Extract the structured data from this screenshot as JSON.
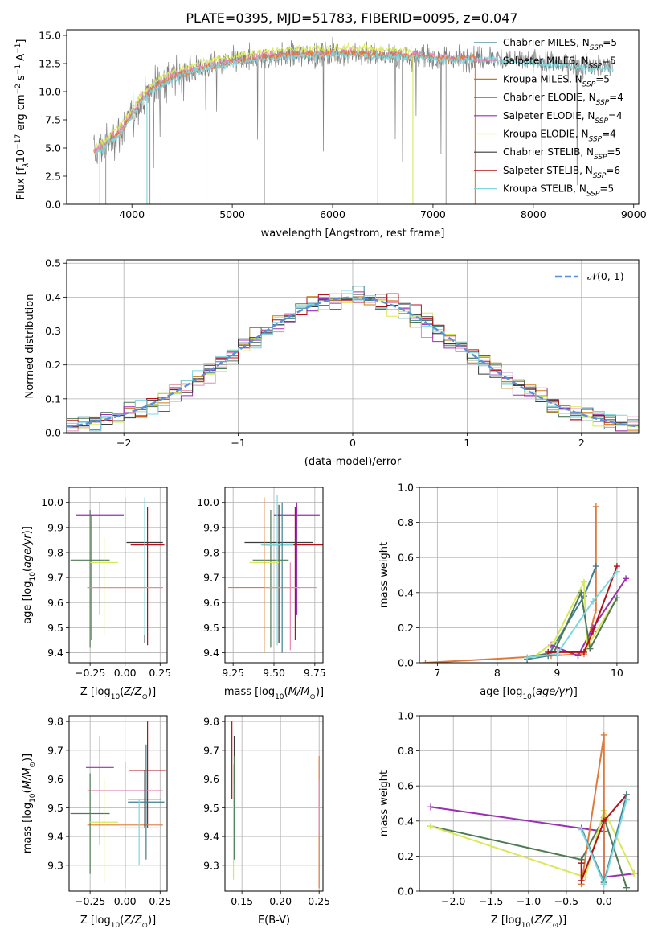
{
  "figure": {
    "title": "PLATE=0395, MJD=51783, FIBERID=0095, z=0.047"
  },
  "colors": {
    "Chabrier MILES": "#3f7f8f",
    "Salpeter MILES": "#e889b3",
    "Kroupa MILES": "#c97a14",
    "Chabrier ELODIE": "#4f7a56",
    "Salpeter ELODIE": "#9a2fb3",
    "Kroupa ELODIE": "#d9e85a",
    "Chabrier STELIB": "#3a3a3a",
    "Salpeter STELIB": "#b3121b",
    "Kroupa STELIB": "#7fd6dc",
    "data": "#808080",
    "orange_model": "#e07a3a",
    "normal": "#5b8ed6",
    "grid": "#b0b0b0"
  },
  "chart_data": [
    {
      "panel": "spectrum",
      "type": "line",
      "title": "PLATE=0395, MJD=51783, FIBERID=0095, z=0.047",
      "xlabel": "wavelength [Angstrom, rest frame]",
      "ylabel": "Flux [fλ10⁻¹⁷ erg cm⁻² s⁻¹ A⁻¹]",
      "xlim": [
        3350,
        9050
      ],
      "ylim": [
        0,
        15.5
      ],
      "xticks": [
        4000,
        5000,
        6000,
        7000,
        8000,
        9000
      ],
      "yticks": [
        0.0,
        2.5,
        5.0,
        7.5,
        10.0,
        12.5,
        15.0
      ],
      "grid": false,
      "legend_position": "right",
      "legend": [
        "Chabrier MILES, N_SSP=5",
        "Salpeter MILES, N_SSP=5",
        "Kroupa MILES, N_SSP=5",
        "Chabrier ELODIE, N_SSP=4",
        "Salpeter ELODIE, N_SSP=4",
        "Kroupa ELODIE, N_SSP=4",
        "Chabrier STELIB, N_SSP=5",
        "Salpeter STELIB, N_SSP=6",
        "Kroupa STELIB, N_SSP=5"
      ],
      "continuum": {
        "x": [
          3600,
          3700,
          3800,
          3900,
          4000,
          4100,
          4200,
          4300,
          4400,
          4500,
          4600,
          4800,
          5000,
          5200,
          5400,
          5600,
          5800,
          6000,
          6200,
          6400,
          6600,
          6800,
          7000,
          7200,
          7400,
          7600,
          7800,
          8000,
          8200,
          8400,
          8600,
          8800
        ],
        "y": [
          4.5,
          5.0,
          5.8,
          6.6,
          8.0,
          9.3,
          10.2,
          10.8,
          11.2,
          11.6,
          11.9,
          12.3,
          12.6,
          12.9,
          13.1,
          13.3,
          13.3,
          13.4,
          13.4,
          13.3,
          13.2,
          13.2,
          13.0,
          12.9,
          13.0,
          13.0,
          12.8,
          12.7,
          12.5,
          12.4,
          12.2,
          12.2
        ]
      },
      "models_extent": {
        "Kroupa MILES": [
          3600,
          7420
        ],
        "Salpeter MILES": [
          3600,
          7420
        ],
        "Chabrier MILES": [
          3600,
          7420
        ],
        "Kroupa STELIB": [
          3620,
          8800
        ]
      },
      "dips": [
        {
          "x": 4150,
          "to": 0.0
        },
        {
          "x": 6800,
          "to": 0.0
        },
        {
          "x": 7420,
          "to": 0.0
        }
      ]
    },
    {
      "panel": "residual_histogram",
      "type": "line",
      "xlabel": "(data-model)/error",
      "ylabel": "Normed distribution",
      "xlim": [
        -2.5,
        2.5
      ],
      "ylim": [
        0,
        0.51
      ],
      "xticks": [
        -2,
        -1,
        0,
        1,
        2
      ],
      "yticks": [
        0.0,
        0.1,
        0.2,
        0.3,
        0.4,
        0.5
      ],
      "grid": true,
      "legend_position": "top-right",
      "legend": [
        "𝒩(0, 1)"
      ],
      "bin_width": 0.1,
      "bin_start": -2.5
    },
    {
      "panel": "age_vs_Z",
      "type": "scatter",
      "xlabel": "Z [log10(Z/Z⊙)]",
      "ylabel": "age [log10(age/yr)]",
      "xlim": [
        -0.4,
        0.3
      ],
      "ylim": [
        9.36,
        10.06
      ],
      "xticks": [
        -0.25,
        0.0,
        0.25
      ],
      "yticks": [
        9.4,
        9.5,
        9.6,
        9.7,
        9.8,
        9.9,
        10.0
      ],
      "grid": true,
      "points": [
        {
          "model": "Chabrier ELODIE",
          "x": -0.25,
          "y": 9.77,
          "xerr": 0.14,
          "yerr": [
            0.35,
            0.2
          ]
        },
        {
          "model": "Chabrier MILES",
          "x": -0.24,
          "y": 9.75,
          "xerr": 0.0,
          "yerr": [
            0.3,
            0.2
          ]
        },
        {
          "model": "Salpeter ELODIE",
          "x": -0.18,
          "y": 9.95,
          "xerr": 0.17,
          "yerr": [
            0.4,
            0.05
          ]
        },
        {
          "model": "Kroupa ELODIE",
          "x": -0.15,
          "y": 9.76,
          "xerr": 0.1,
          "yerr": [
            0.29,
            0.1
          ]
        },
        {
          "model": "Chabrier STELIB",
          "x": 0.14,
          "y": 9.84,
          "xerr": 0.13,
          "yerr": [
            0.4,
            0.15
          ]
        },
        {
          "model": "Salpeter STELIB",
          "x": 0.16,
          "y": 9.83,
          "xerr": 0.12,
          "yerr": [
            0.4,
            0.15
          ]
        },
        {
          "model": "Kroupa STELIB",
          "x": 0.14,
          "y": 9.77,
          "xerr": 0.0,
          "yerr": [
            0.3,
            0.25
          ]
        },
        {
          "model": "Kroupa MILES",
          "x": 0.0,
          "y": 9.66,
          "xerr": 0.27,
          "yerr": [
            0.26,
            0.36
          ]
        },
        {
          "model": "Salpeter MILES",
          "x": 0.0,
          "y": 9.66,
          "xerr": 0.27,
          "yerr": [
            0.0,
            0.0
          ]
        }
      ]
    },
    {
      "panel": "age_vs_mass",
      "type": "scatter",
      "xlabel": "mass [log10(M/M⊙)]",
      "ylabel": "",
      "xlim": [
        9.2,
        9.8
      ],
      "ylim": [
        9.36,
        10.06
      ],
      "xticks": [
        9.25,
        9.5,
        9.75
      ],
      "yticks": [
        9.4,
        9.5,
        9.6,
        9.7,
        9.8,
        9.9,
        10.0
      ],
      "grid": true,
      "points": [
        {
          "model": "Salpeter ELODIE",
          "x": 9.64,
          "y": 9.95,
          "xerr": 0.14,
          "yerr": [
            0.4,
            0.05
          ]
        },
        {
          "model": "Chabrier STELIB",
          "x": 9.53,
          "y": 9.84,
          "xerr": 0.21,
          "yerr": [
            0.4,
            0.15
          ]
        },
        {
          "model": "Salpeter STELIB",
          "x": 9.63,
          "y": 9.83,
          "xerr": 0.2,
          "yerr": [
            0.38,
            0.15
          ]
        },
        {
          "model": "Chabrier ELODIE",
          "x": 9.48,
          "y": 9.77,
          "xerr": 0.11,
          "yerr": [
            0.35,
            0.2
          ]
        },
        {
          "model": "Kroupa STELIB",
          "x": 9.52,
          "y": 9.83,
          "xerr": 0.1,
          "yerr": [
            0.4,
            0.2
          ]
        },
        {
          "model": "Kroupa ELODIE",
          "x": 9.44,
          "y": 9.76,
          "xerr": 0.09,
          "yerr": [
            0.29,
            0.1
          ]
        },
        {
          "model": "Kroupa MILES",
          "x": 9.44,
          "y": 9.66,
          "xerr": 0.22,
          "yerr": [
            0.26,
            0.36
          ]
        },
        {
          "model": "Salpeter MILES",
          "x": 9.6,
          "y": 9.66,
          "xerr": 0.16,
          "yerr": [
            0.25,
            0.1
          ]
        },
        {
          "model": "Chabrier MILES",
          "x": 9.55,
          "y": 9.7,
          "xerr": 0.0,
          "yerr": [
            0.3,
            0.3
          ]
        }
      ]
    },
    {
      "panel": "mass_weight_vs_age",
      "type": "line",
      "xlabel": "age [log10(age/yr)]",
      "ylabel": "mass weight",
      "xlim": [
        6.7,
        10.35
      ],
      "ylim": [
        0,
        1.0
      ],
      "xticks": [
        7,
        8,
        9,
        10
      ],
      "yticks": [
        0.0,
        0.2,
        0.4,
        0.6,
        0.8,
        1.0
      ],
      "grid": true,
      "series": [
        {
          "model": "Kroupa MILES",
          "x": [
            6.8,
            8.9,
            9.45,
            9.65,
            9.65
          ],
          "y": [
            0.0,
            0.04,
            0.05,
            0.3,
            0.89
          ]
        },
        {
          "model": "Chabrier MILES",
          "x": [
            8.5,
            8.85,
            9.45,
            9.65
          ],
          "y": [
            0.02,
            0.04,
            0.38,
            0.55
          ]
        },
        {
          "model": "Salpeter ELODIE",
          "x": [
            8.9,
            9.35,
            9.6,
            10.15
          ],
          "y": [
            0.1,
            0.04,
            0.2,
            0.48
          ]
        },
        {
          "model": "Kroupa ELODIE",
          "x": [
            8.6,
            8.95,
            9.45,
            9.5,
            10.0
          ],
          "y": [
            0.03,
            0.12,
            0.46,
            0.09,
            0.37
          ]
        },
        {
          "model": "Chabrier ELODIE",
          "x": [
            8.5,
            8.95,
            9.4,
            9.55,
            10.0
          ],
          "y": [
            0.03,
            0.06,
            0.4,
            0.08,
            0.37
          ]
        },
        {
          "model": "Salpeter STELIB",
          "x": [
            8.85,
            9.45,
            9.6,
            10.0
          ],
          "y": [
            0.06,
            0.06,
            0.18,
            0.55
          ]
        },
        {
          "model": "Kroupa STELIB",
          "x": [
            8.5,
            9.0,
            9.6,
            10.0
          ],
          "y": [
            0.03,
            0.05,
            0.35,
            0.52
          ]
        }
      ]
    },
    {
      "panel": "mass_vs_Z",
      "type": "scatter",
      "xlabel": "Z [log10(Z/Z⊙)]",
      "ylabel": "mass [log10(M/M⊙)]",
      "xlim": [
        -0.4,
        0.3
      ],
      "ylim": [
        9.21,
        9.82
      ],
      "xticks": [
        -0.25,
        0.0,
        0.25
      ],
      "yticks": [
        9.3,
        9.4,
        9.5,
        9.6,
        9.7,
        9.8
      ],
      "grid": true,
      "points": [
        {
          "model": "Salpeter ELODIE",
          "x": -0.18,
          "y": 9.64,
          "xerr": 0.1,
          "yerr": [
            0.27,
            0.11
          ]
        },
        {
          "model": "Salpeter STELIB",
          "x": 0.16,
          "y": 9.63,
          "xerr": 0.13,
          "yerr": [
            0.2,
            0.17
          ]
        },
        {
          "model": "Kroupa MILES",
          "x": 0.0,
          "y": 9.44,
          "xerr": 0.27,
          "yerr": [
            0.22,
            0.22
          ]
        },
        {
          "model": "Salpeter MILES",
          "x": 0.0,
          "y": 9.56,
          "xerr": 0.27,
          "yerr": [
            0.1,
            0.1
          ]
        },
        {
          "model": "Chabrier ELODIE",
          "x": -0.25,
          "y": 9.48,
          "xerr": 0.14,
          "yerr": [
            0.21,
            0.14
          ]
        },
        {
          "model": "Kroupa ELODIE",
          "x": -0.15,
          "y": 9.45,
          "xerr": 0.1,
          "yerr": [
            0.21,
            0.15
          ]
        },
        {
          "model": "Chabrier STELIB",
          "x": 0.14,
          "y": 9.53,
          "xerr": 0.12,
          "yerr": [
            0.1,
            0.1
          ]
        },
        {
          "model": "Chabrier MILES",
          "x": 0.15,
          "y": 9.52,
          "xerr": 0.13,
          "yerr": [
            0.2,
            0.2
          ]
        },
        {
          "model": "Kroupa STELIB",
          "x": 0.1,
          "y": 9.43,
          "xerr": 0.14,
          "yerr": [
            0.13,
            0.1
          ]
        }
      ]
    },
    {
      "panel": "mass_vs_ebv",
      "type": "scatter",
      "xlabel": "E(B-V)",
      "ylabel": "",
      "xlim": [
        0.128,
        0.255
      ],
      "ylim": [
        9.21,
        9.82
      ],
      "xticks": [
        0.15,
        0.2,
        0.25
      ],
      "yticks": [
        9.3,
        9.4,
        9.5,
        9.6,
        9.7,
        9.8
      ],
      "grid": true,
      "points": [
        {
          "model": "Salpeter STELIB",
          "x": 0.137,
          "y": 9.63,
          "xerr": 0.0,
          "yerr": [
            0.1,
            0.17
          ]
        },
        {
          "model": "Chabrier STELIB",
          "x": 0.14,
          "y": 9.6,
          "xerr": 0.0,
          "yerr": [
            0.25,
            0.15
          ]
        },
        {
          "model": "Kroupa ELODIE",
          "x": 0.139,
          "y": 9.45,
          "xerr": 0.0,
          "yerr": [
            0.2,
            0.2
          ]
        },
        {
          "model": "Chabrier ELODIE",
          "x": 0.14,
          "y": 9.48,
          "xerr": 0.0,
          "yerr": [
            0.16,
            0.2
          ]
        },
        {
          "model": "Kroupa STELIB",
          "x": 0.141,
          "y": 9.43,
          "xerr": 0.0,
          "yerr": [
            0.12,
            0.15
          ]
        },
        {
          "model": "Kroupa MILES",
          "x": 0.25,
          "y": 9.44,
          "xerr": 0.0,
          "yerr": [
            0.22,
            0.24
          ]
        },
        {
          "model": "Salpeter MILES",
          "x": 0.25,
          "y": 9.5,
          "xerr": 0.0,
          "yerr": [
            0.1,
            0.1
          ]
        }
      ]
    },
    {
      "panel": "mass_weight_vs_Z",
      "type": "line",
      "xlabel": "Z [log10(Z/Z⊙)]",
      "ylabel": "mass weight",
      "xlim": [
        -2.45,
        0.45
      ],
      "ylim": [
        0,
        1.0
      ],
      "xticks": [
        -2.0,
        -1.5,
        -1.0,
        -0.5,
        0.0
      ],
      "yticks": [
        0.0,
        0.2,
        0.4,
        0.6,
        0.8,
        1.0
      ],
      "grid": true,
      "series": [
        {
          "model": "Salpeter ELODIE",
          "x": [
            -2.3,
            0.0,
            0.0,
            0.4
          ],
          "y": [
            0.48,
            0.34,
            0.08,
            0.1
          ]
        },
        {
          "model": "Chabrier ELODIE",
          "x": [
            -2.3,
            -0.3,
            0.0,
            0.3
          ],
          "y": [
            0.37,
            0.18,
            0.42,
            0.02
          ]
        },
        {
          "model": "Kroupa ELODIE",
          "x": [
            -2.3,
            -0.25,
            0.0,
            0.4
          ],
          "y": [
            0.37,
            0.08,
            0.46,
            0.1
          ]
        },
        {
          "model": "Kroupa MILES",
          "x": [
            -0.3,
            0.0,
            0.0,
            0.0
          ],
          "y": [
            0.04,
            0.89,
            0.05,
            0.04
          ]
        },
        {
          "model": "Salpeter STELIB",
          "x": [
            -0.3,
            -0.3,
            0.0,
            0.3
          ],
          "y": [
            0.16,
            0.06,
            0.4,
            0.55
          ]
        },
        {
          "model": "Chabrier MILES",
          "x": [
            -0.3,
            0.0,
            0.3
          ],
          "y": [
            0.36,
            0.05,
            0.55
          ]
        },
        {
          "model": "Kroupa STELIB",
          "x": [
            -0.3,
            0.0,
            0.3
          ],
          "y": [
            0.35,
            0.04,
            0.52
          ]
        }
      ]
    }
  ]
}
